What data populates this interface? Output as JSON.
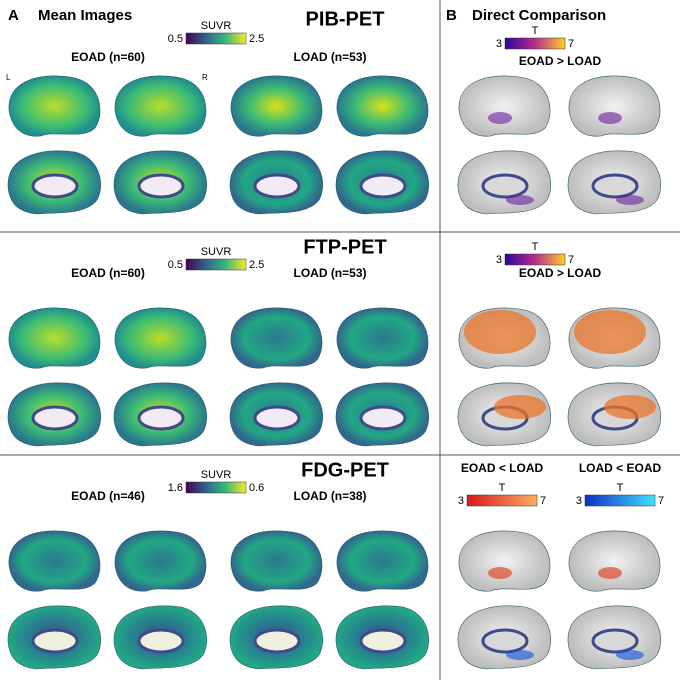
{
  "panels": [
    {
      "label": "A",
      "title": "Mean Images"
    },
    {
      "label": "B",
      "title": "Direct Comparison"
    }
  ],
  "hemisphere_labels": [
    "L",
    "R"
  ],
  "rows": [
    {
      "title": "PIB-PET",
      "colorbar": {
        "label": "SUVR",
        "min": 0.5,
        "max": 2.5
      },
      "groups": [
        "EOAD (n=60)",
        "LOAD (n=53)"
      ],
      "comparisons": [
        {
          "label": "EOAD > LOAD",
          "colorbar": {
            "label": "T",
            "min": 3,
            "max": 7
          }
        }
      ]
    },
    {
      "title": "FTP-PET",
      "colorbar": {
        "label": "SUVR",
        "min": 0.5,
        "max": 2.5
      },
      "groups": [
        "EOAD (n=60)",
        "LOAD (n=53)"
      ],
      "comparisons": [
        {
          "label": "EOAD > LOAD",
          "colorbar": {
            "label": "T",
            "min": 3,
            "max": 7
          }
        }
      ]
    },
    {
      "title": "FDG-PET",
      "colorbar": {
        "label": "SUVR",
        "min": 1.6,
        "max": 0.6
      },
      "groups": [
        "EOAD (n=46)",
        "LOAD (n=38)"
      ],
      "comparisons": [
        {
          "label": "EOAD < LOAD",
          "colorbar": {
            "label": "T",
            "min": 3,
            "max": 7
          }
        },
        {
          "label": "LOAD < EOAD",
          "colorbar": {
            "label": "T",
            "min": 3,
            "max": 7
          }
        }
      ]
    }
  ]
}
